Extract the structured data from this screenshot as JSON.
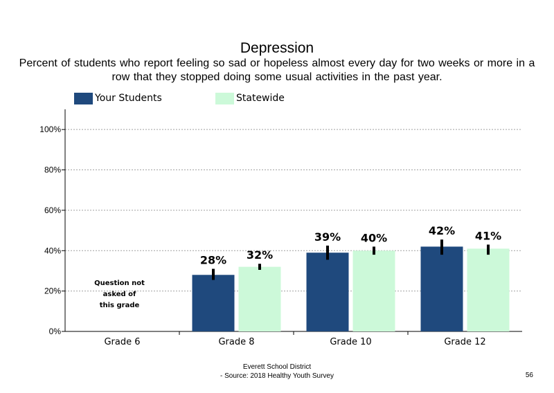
{
  "chart_data": {
    "type": "bar",
    "title": "Depression",
    "subtitle": "Percent of students who report feeling so sad or hopeless almost every day for two weeks or more in a row that they stopped doing some usual activities in the past year.",
    "categories": [
      "Grade 6",
      "Grade 8",
      "Grade 10",
      "Grade 12"
    ],
    "series": [
      {
        "name": "Your Students",
        "color": "#1F497D",
        "values": [
          null,
          28,
          39,
          42
        ],
        "labels": [
          "",
          "28%",
          "39%",
          "42%"
        ],
        "error_low": [
          null,
          25.5,
          35.5,
          38
        ],
        "error_high": [
          null,
          31,
          42.5,
          45.5
        ]
      },
      {
        "name": "Statewide",
        "color": "#CCF9D9",
        "values": [
          null,
          32,
          40,
          41
        ],
        "labels": [
          "",
          "32%",
          "40%",
          "41%"
        ],
        "error_low": [
          null,
          30.5,
          38,
          38
        ],
        "error_high": [
          null,
          33.5,
          42,
          43
        ]
      }
    ],
    "ylim": [
      0,
      110
    ],
    "yticks": [
      0,
      20,
      40,
      60,
      80,
      100
    ],
    "ytick_labels": [
      "0%",
      "20%",
      "40%",
      "60%",
      "80%",
      "100%"
    ],
    "grid": true,
    "legend": "top-left",
    "annotations": [
      {
        "category": "Grade 6",
        "lines": [
          "Question not",
          "asked of",
          "this grade"
        ]
      }
    ]
  },
  "footer": {
    "line1": "Everett School District",
    "line2": "- Source: 2018 Healthy Youth Survey",
    "page_number": "56"
  }
}
